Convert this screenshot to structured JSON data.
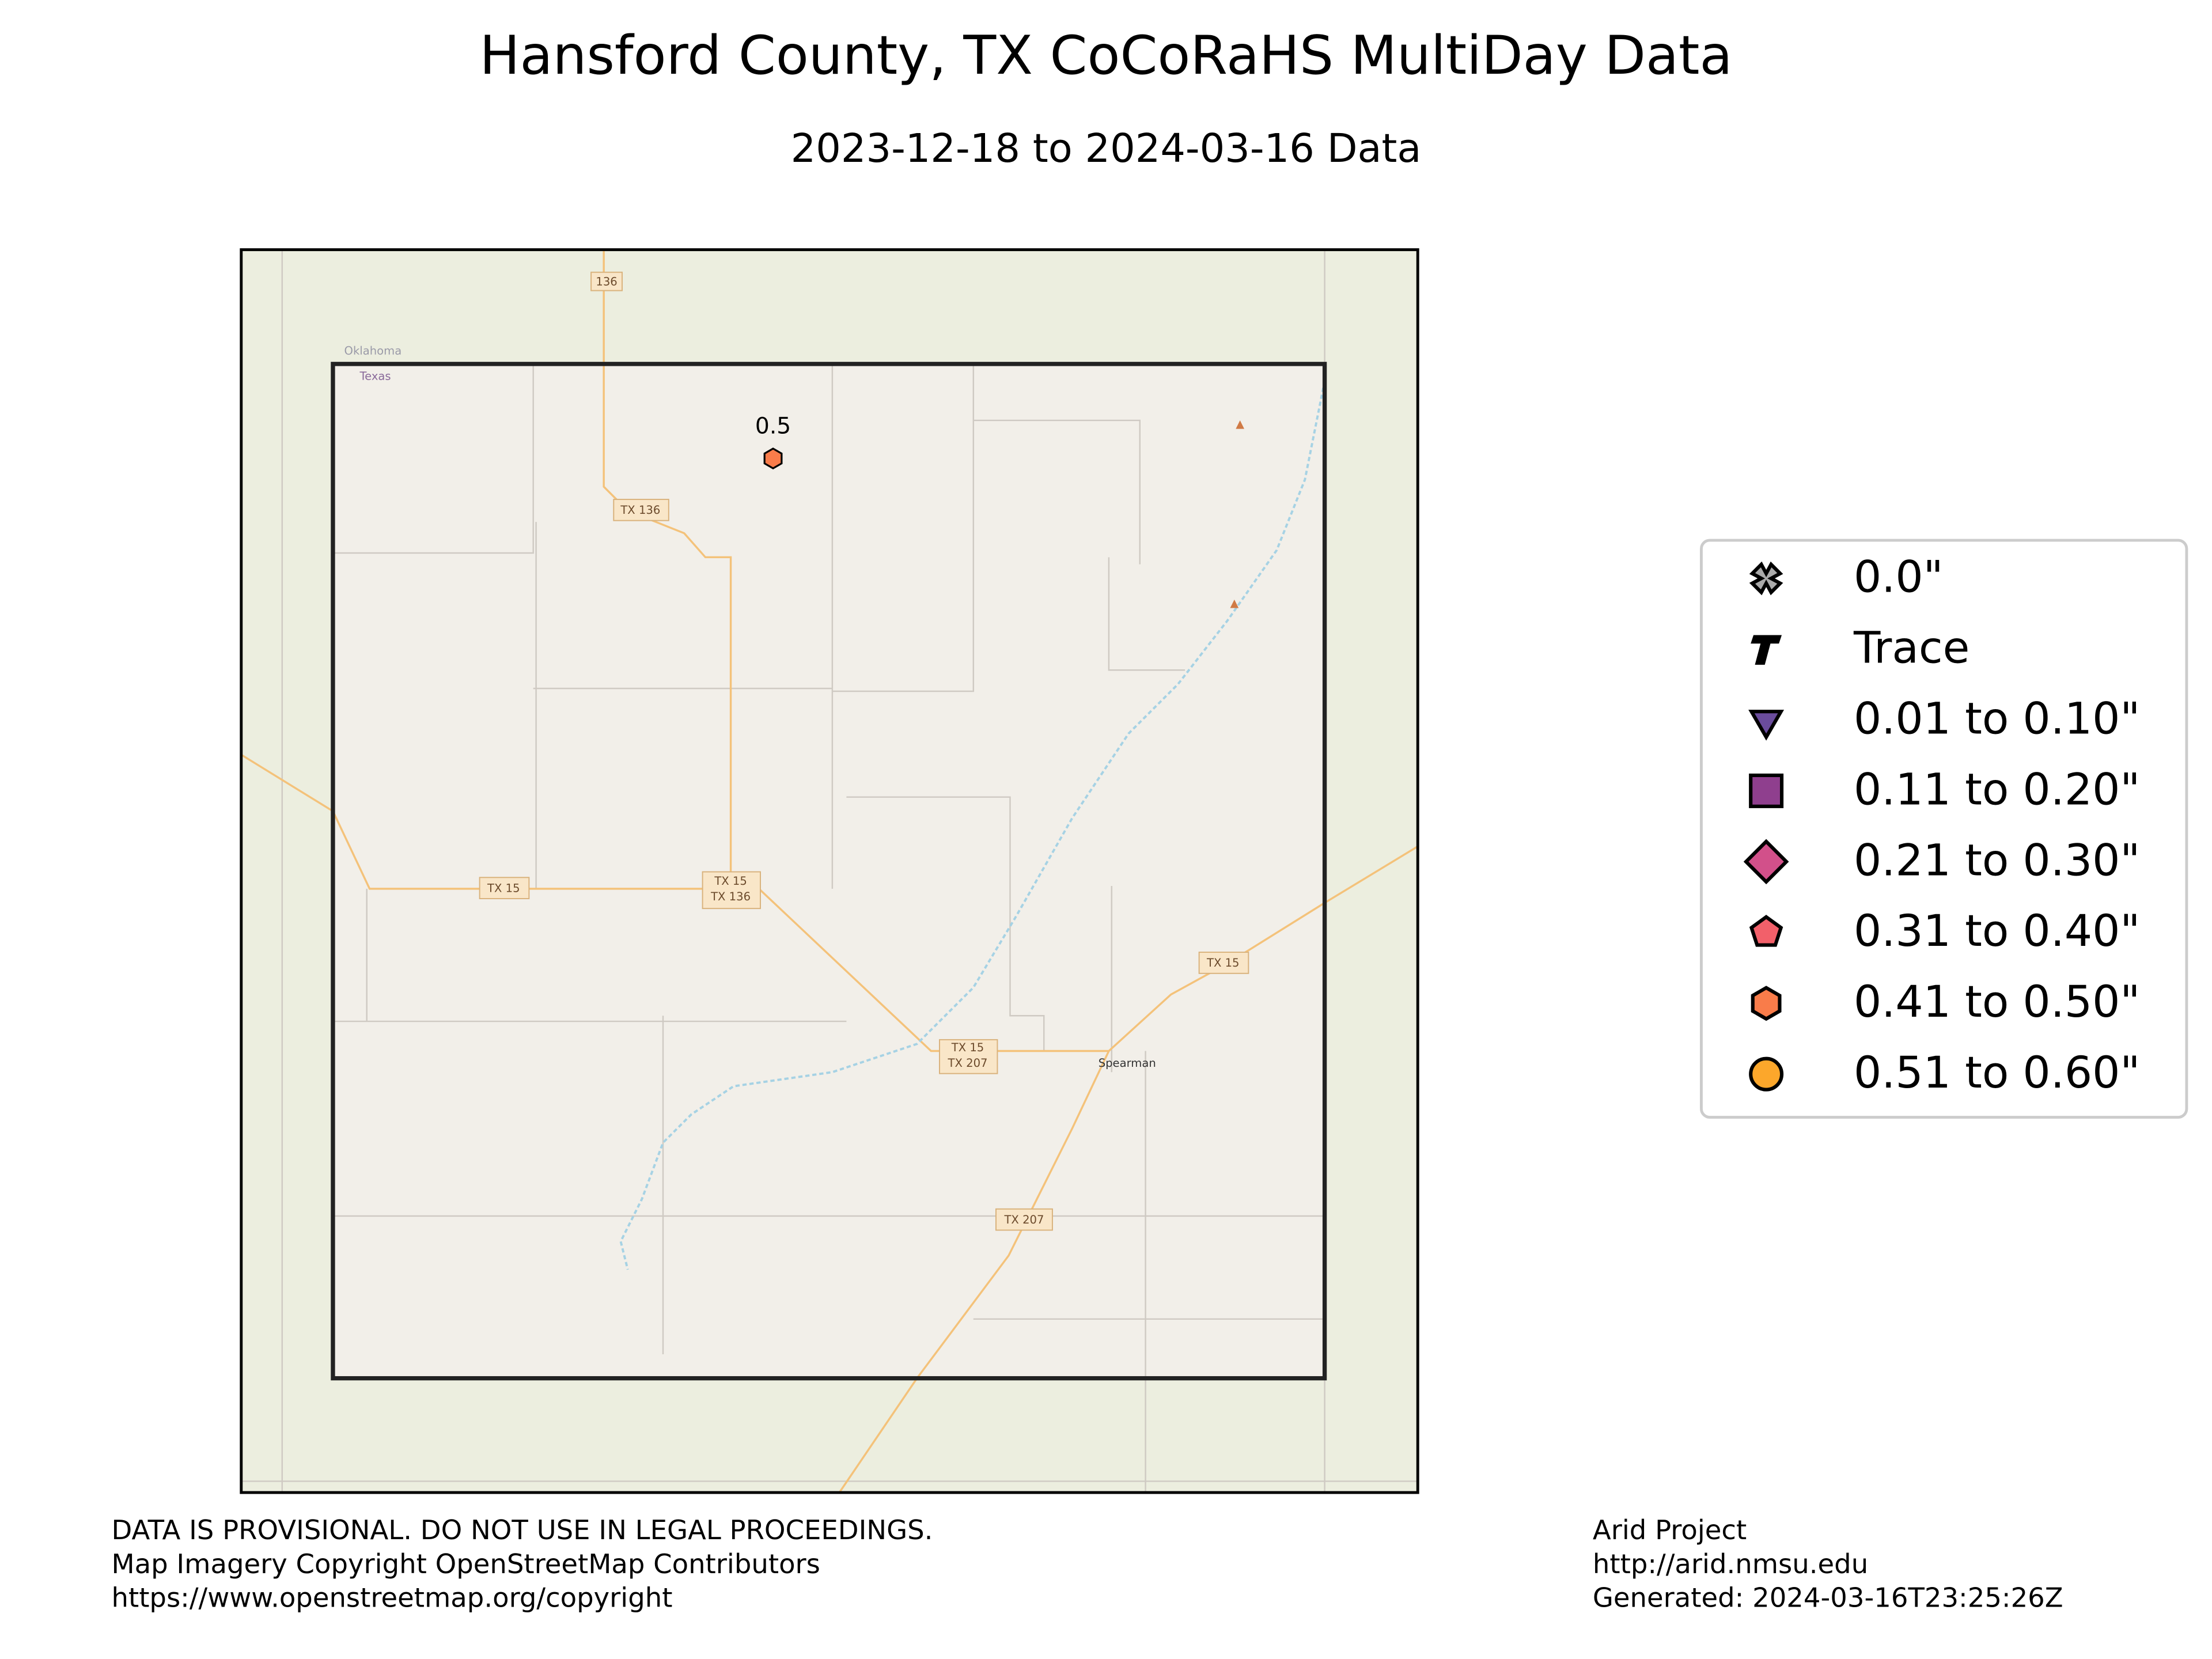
{
  "title": "Hansford County, TX CoCoRaHS MultiDay Data",
  "subtitle": "2023-12-18 to 2024-03-16 Data",
  "map": {
    "labels": [
      "136",
      "Oklahoma",
      "Texas",
      "TX 136",
      "TX 15",
      "TX 15",
      "TX 136",
      "TX 15",
      "TX 15",
      "TX 207",
      "Spearman",
      "TX 207"
    ]
  },
  "stations": [
    {
      "value": 0.5,
      "marker": "hexagon",
      "color": "#f97c4a"
    }
  ],
  "legend": {
    "items": [
      {
        "label": "0.0\"",
        "marker": "x",
        "color": "#aaaaaa"
      },
      {
        "label": "Trace",
        "marker": "t",
        "color": "#000000"
      },
      {
        "label": "0.01 to 0.10\"",
        "marker": "triangle",
        "color": "#6a4c9c"
      },
      {
        "label": "0.11 to 0.20\"",
        "marker": "square",
        "color": "#8f3f8e"
      },
      {
        "label": "0.21 to 0.30\"",
        "marker": "diamond",
        "color": "#d2508a"
      },
      {
        "label": "0.31 to 0.40\"",
        "marker": "pentagon",
        "color": "#f2606a"
      },
      {
        "label": "0.41 to 0.50\"",
        "marker": "hexagon",
        "color": "#f97c4a"
      },
      {
        "label": "0.51 to 0.60\"",
        "marker": "circle",
        "color": "#fca72b"
      }
    ]
  },
  "footer": {
    "left": [
      "DATA IS PROVISIONAL. DO NOT USE IN LEGAL PROCEEDINGS.",
      "Map Imagery Copyright OpenStreetMap Contributors",
      "https://www.openstreetmap.org/copyright"
    ],
    "right": [
      "Arid Project",
      "http://arid.nmsu.edu",
      "Generated: 2024-03-16T23:25:26Z"
    ]
  }
}
